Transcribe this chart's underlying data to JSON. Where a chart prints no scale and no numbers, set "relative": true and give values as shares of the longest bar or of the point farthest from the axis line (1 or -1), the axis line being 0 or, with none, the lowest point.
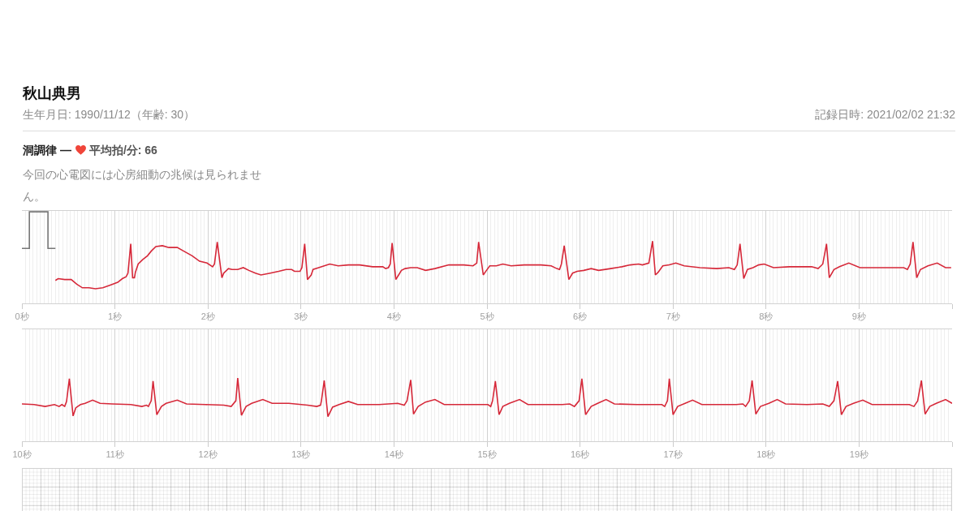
{
  "chart_data": [
    {
      "type": "line",
      "title": "秋山典男",
      "subtitle": "生年月日: 1990/11/12（年齢: 30）",
      "annotations": [
        "記録日時: 2021/02/02 21:32",
        "洞調律 —",
        "平均拍/分: 66",
        "今回の心電図には心房細動の兆候は見られません。"
      ],
      "relative": true,
      "grid": true,
      "xlim": [
        0,
        10
      ],
      "xticks": [
        {
          "value": 0,
          "label": "0秒"
        },
        {
          "value": 1,
          "label": "1秒"
        },
        {
          "value": 2,
          "label": "2秒"
        },
        {
          "value": 3,
          "label": "3秒"
        },
        {
          "value": 4,
          "label": "4秒"
        },
        {
          "value": 5,
          "label": "5秒"
        },
        {
          "value": 6,
          "label": "6秒"
        },
        {
          "value": 7,
          "label": "7秒"
        },
        {
          "value": 8,
          "label": "8秒"
        },
        {
          "value": 9,
          "label": "9秒"
        },
        {
          "value": 10,
          "label": null
        }
      ],
      "series": [
        {
          "color": "#777777",
          "x": [
            0,
            0.08,
            0.08,
            0.28,
            0.28,
            0.36
          ],
          "values": [
            0.6,
            0.6,
            1,
            1,
            0.6,
            0.6
          ]
        },
        {
          "color": "#d62839",
          "x": [
            0.36,
            0.39,
            0.46,
            0.53,
            0.59,
            0.65,
            0.72,
            0.79,
            0.87,
            0.95,
            1.03,
            1.08,
            1.12,
            1.14,
            1.17,
            1.19,
            1.21,
            1.22,
            1.25,
            1.3,
            1.35,
            1.39,
            1.44,
            1.51,
            1.58,
            1.67,
            1.74,
            1.83,
            1.91,
            1.99,
            2.05,
            2.07,
            2.1,
            2.15,
            2.17,
            2.22,
            2.26,
            2.32,
            2.38,
            2.44,
            2.51,
            2.57,
            2.67,
            2.76,
            2.84,
            2.9,
            2.93,
            2.99,
            3.01,
            3.04,
            3.07,
            3.11,
            3.13,
            3.19,
            3.25,
            3.31,
            3.4,
            3.51,
            3.63,
            3.77,
            3.88,
            3.91,
            3.94,
            3.96,
            3.98,
            4.02,
            4.05,
            4.08,
            4.12,
            4.18,
            4.25,
            4.34,
            4.44,
            4.59,
            4.75,
            4.85,
            4.89,
            4.91,
            4.96,
            4.98,
            5.03,
            5.1,
            5.17,
            5.26,
            5.4,
            5.58,
            5.69,
            5.75,
            5.78,
            5.8,
            5.83,
            5.88,
            5.92,
            5.97,
            6.04,
            6.12,
            6.2,
            6.33,
            6.45,
            6.54,
            6.63,
            6.67,
            6.74,
            6.78,
            6.81,
            6.84,
            6.89,
            6.96,
            7.03,
            7.12,
            7.29,
            7.47,
            7.6,
            7.66,
            7.69,
            7.72,
            7.76,
            7.8,
            7.86,
            7.92,
            7.98,
            8.08,
            8.25,
            8.49,
            8.56,
            8.61,
            8.65,
            8.68,
            8.73,
            8.79,
            8.89,
            9.01,
            9.19,
            9.36,
            9.48,
            9.52,
            9.55,
            9.58,
            9.62,
            9.66,
            9.74,
            9.84,
            9.93,
            9.99
          ],
          "values": [
            0.25,
            0.27,
            0.26,
            0.26,
            0.21,
            0.17,
            0.17,
            0.16,
            0.17,
            0.2,
            0.23,
            0.27,
            0.29,
            0.33,
            0.65,
            0.28,
            0.28,
            0.34,
            0.43,
            0.48,
            0.52,
            0.57,
            0.62,
            0.63,
            0.61,
            0.61,
            0.57,
            0.52,
            0.46,
            0.44,
            0.4,
            0.43,
            0.67,
            0.28,
            0.33,
            0.38,
            0.37,
            0.37,
            0.39,
            0.36,
            0.33,
            0.31,
            0.33,
            0.35,
            0.37,
            0.37,
            0.35,
            0.35,
            0.39,
            0.65,
            0.26,
            0.31,
            0.37,
            0.39,
            0.41,
            0.43,
            0.41,
            0.42,
            0.42,
            0.4,
            0.4,
            0.38,
            0.39,
            0.43,
            0.66,
            0.26,
            0.31,
            0.36,
            0.38,
            0.39,
            0.39,
            0.36,
            0.38,
            0.42,
            0.42,
            0.41,
            0.44,
            0.67,
            0.31,
            0.34,
            0.41,
            0.41,
            0.43,
            0.41,
            0.42,
            0.42,
            0.41,
            0.38,
            0.37,
            0.43,
            0.63,
            0.26,
            0.33,
            0.35,
            0.36,
            0.38,
            0.36,
            0.38,
            0.4,
            0.42,
            0.43,
            0.42,
            0.44,
            0.68,
            0.31,
            0.34,
            0.41,
            0.42,
            0.44,
            0.41,
            0.39,
            0.38,
            0.39,
            0.37,
            0.42,
            0.65,
            0.27,
            0.37,
            0.39,
            0.42,
            0.43,
            0.39,
            0.4,
            0.4,
            0.38,
            0.43,
            0.65,
            0.28,
            0.37,
            0.4,
            0.44,
            0.39,
            0.39,
            0.39,
            0.39,
            0.37,
            0.43,
            0.67,
            0.28,
            0.37,
            0.41,
            0.44,
            0.39,
            0.39
          ]
        }
      ]
    },
    {
      "type": "line",
      "relative": true,
      "grid": true,
      "xlim": [
        10,
        20
      ],
      "xticks": [
        {
          "value": 10,
          "label": "10秒"
        },
        {
          "value": 11,
          "label": "11秒"
        },
        {
          "value": 12,
          "label": "12秒"
        },
        {
          "value": 13,
          "label": "13秒"
        },
        {
          "value": 14,
          "label": "14秒"
        },
        {
          "value": 15,
          "label": "15秒"
        },
        {
          "value": 16,
          "label": "16秒"
        },
        {
          "value": 17,
          "label": "17秒"
        },
        {
          "value": 18,
          "label": "18秒"
        },
        {
          "value": 19,
          "label": "19秒"
        },
        {
          "value": 20,
          "label": null
        }
      ],
      "series": [
        {
          "color": "#d62839",
          "x": [
            10,
            10.13,
            10.25,
            10.35,
            10.4,
            10.43,
            10.46,
            10.48,
            10.51,
            10.55,
            10.58,
            10.63,
            10.68,
            10.76,
            10.84,
            10.97,
            11.17,
            11.29,
            11.34,
            11.36,
            11.39,
            11.41,
            11.45,
            11.5,
            11.55,
            11.67,
            11.77,
            11.97,
            12.17,
            12.25,
            12.3,
            12.32,
            12.36,
            12.41,
            12.47,
            12.59,
            12.69,
            12.87,
            13.07,
            13.17,
            13.21,
            13.22,
            13.25,
            13.29,
            13.34,
            13.41,
            13.51,
            13.61,
            13.84,
            14.04,
            14.11,
            14.14,
            14.18,
            14.21,
            14.26,
            14.34,
            14.44,
            14.54,
            14.77,
            14.97,
            15.01,
            15.04,
            15.06,
            15.09,
            15.13,
            15.17,
            15.24,
            15.35,
            15.44,
            15.67,
            15.81,
            15.89,
            15.94,
            15.99,
            16.02,
            16.06,
            16.12,
            16.19,
            16.28,
            16.37,
            16.61,
            16.81,
            16.88,
            16.91,
            16.94,
            16.96,
            17,
            17.05,
            17.13,
            17.21,
            17.31,
            17.54,
            17.68,
            17.75,
            17.78,
            17.82,
            17.85,
            17.89,
            17.94,
            18.03,
            18.12,
            18.21,
            18.44,
            18.61,
            18.68,
            18.73,
            18.77,
            18.81,
            18.86,
            18.94,
            19.04,
            19.14,
            19.41,
            19.54,
            19.59,
            19.63,
            19.67,
            19.71,
            19.76,
            19.83,
            19.93,
            20
          ],
          "values": [
            0.59,
            0.58,
            0.55,
            0.58,
            0.55,
            0.58,
            0.55,
            0.63,
            0.99,
            0.4,
            0.53,
            0.58,
            0.6,
            0.65,
            0.6,
            0.59,
            0.58,
            0.55,
            0.57,
            0.55,
            0.64,
            0.95,
            0.42,
            0.55,
            0.6,
            0.65,
            0.59,
            0.58,
            0.57,
            0.55,
            0.64,
            1,
            0.41,
            0.55,
            0.6,
            0.66,
            0.6,
            0.6,
            0.57,
            0.55,
            0.57,
            0.64,
            0.96,
            0.39,
            0.54,
            0.58,
            0.63,
            0.58,
            0.58,
            0.6,
            0.57,
            0.64,
            0.97,
            0.43,
            0.55,
            0.62,
            0.66,
            0.58,
            0.58,
            0.58,
            0.58,
            0.55,
            0.64,
            0.95,
            0.42,
            0.55,
            0.6,
            0.66,
            0.58,
            0.58,
            0.58,
            0.59,
            0.55,
            0.64,
            0.99,
            0.42,
            0.55,
            0.6,
            0.66,
            0.59,
            0.58,
            0.58,
            0.58,
            0.55,
            0.64,
            0.99,
            0.42,
            0.55,
            0.6,
            0.65,
            0.58,
            0.58,
            0.58,
            0.59,
            0.55,
            0.64,
            0.96,
            0.43,
            0.55,
            0.6,
            0.66,
            0.59,
            0.58,
            0.59,
            0.55,
            0.64,
            0.95,
            0.42,
            0.55,
            0.6,
            0.65,
            0.58,
            0.58,
            0.58,
            0.55,
            0.64,
            0.96,
            0.43,
            0.55,
            0.6,
            0.66,
            0.6
          ]
        }
      ]
    }
  ]
}
